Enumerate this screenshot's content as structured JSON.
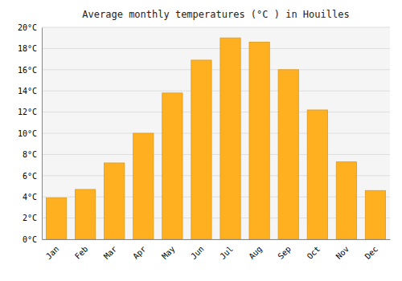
{
  "chart_data": {
    "type": "bar",
    "title": "Average monthly temperatures (°C ) in Houilles",
    "categories": [
      "Jan",
      "Feb",
      "Mar",
      "Apr",
      "May",
      "Jun",
      "Jul",
      "Aug",
      "Sep",
      "Oct",
      "Nov",
      "Dec"
    ],
    "values": [
      3.9,
      4.7,
      7.2,
      10.0,
      13.8,
      16.9,
      19.0,
      18.6,
      16.0,
      12.2,
      7.3,
      4.6
    ],
    "color": "#FFB020",
    "ylim": [
      0,
      20
    ],
    "yticks": [
      {
        "value": 0,
        "label": "0°C"
      },
      {
        "value": 2,
        "label": "2°C"
      },
      {
        "value": 4,
        "label": "4°C"
      },
      {
        "value": 6,
        "label": "6°C"
      },
      {
        "value": 8,
        "label": "8°C"
      },
      {
        "value": 10,
        "label": "10°C"
      },
      {
        "value": 12,
        "label": "12°C"
      },
      {
        "value": 14,
        "label": "14°C"
      },
      {
        "value": 16,
        "label": "16°C"
      },
      {
        "value": 18,
        "label": "18°C"
      },
      {
        "value": 20,
        "label": "20°C"
      }
    ],
    "grid": true
  }
}
